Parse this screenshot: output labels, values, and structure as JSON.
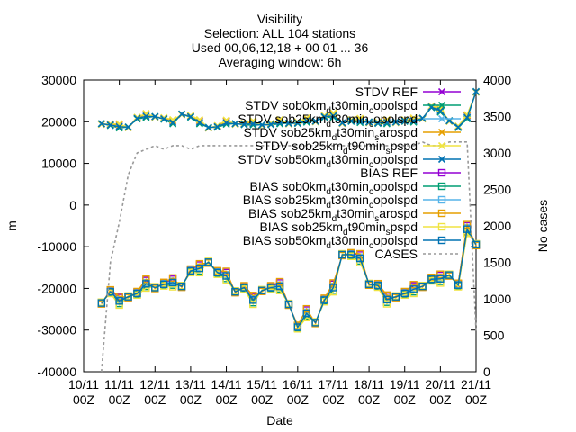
{
  "chart_data": {
    "type": "line",
    "title_lines": [
      "Visibility",
      "Selection: ALL     104 stations",
      "Used 00,06,12,18 + 00 01 ... 36",
      "Averaging window:  6h"
    ],
    "xlabel": "Date",
    "ylabel": "m",
    "y2label": "No cases",
    "xlim": [
      0,
      44
    ],
    "ylim": [
      -40000,
      30000
    ],
    "y2lim": [
      0,
      4000
    ],
    "x_ticks": [
      {
        "x": 0,
        "top": "10/11",
        "bottom": "00Z"
      },
      {
        "x": 4,
        "top": "11/11",
        "bottom": "00Z"
      },
      {
        "x": 8,
        "top": "12/11",
        "bottom": "00Z"
      },
      {
        "x": 12,
        "top": "13/11",
        "bottom": "00Z"
      },
      {
        "x": 16,
        "top": "14/11",
        "bottom": "00Z"
      },
      {
        "x": 20,
        "top": "15/11",
        "bottom": "00Z"
      },
      {
        "x": 24,
        "top": "16/11",
        "bottom": "00Z"
      },
      {
        "x": 28,
        "top": "17/11",
        "bottom": "00Z"
      },
      {
        "x": 32,
        "top": "18/11",
        "bottom": "00Z"
      },
      {
        "x": 36,
        "top": "19/11",
        "bottom": "00Z"
      },
      {
        "x": 40,
        "top": "20/11",
        "bottom": "00Z"
      },
      {
        "x": 44,
        "top": "21/11",
        "bottom": "00Z"
      }
    ],
    "y_ticks": [
      "30000",
      "20000",
      "10000",
      "0",
      "-10000",
      "-20000",
      "-30000",
      "-40000"
    ],
    "y2_ticks": [
      "4000",
      "3500",
      "3000",
      "2500",
      "2000",
      "1500",
      "1000",
      "500",
      "0"
    ],
    "grid": false,
    "legend_position": "top-right",
    "x": [
      2,
      3,
      4,
      5,
      6,
      7,
      8,
      9,
      10,
      11,
      12,
      13,
      14,
      15,
      16,
      17,
      18,
      19,
      20,
      21,
      22,
      23,
      24,
      25,
      26,
      27,
      28,
      29,
      30,
      31,
      32,
      33,
      34,
      35,
      36,
      37,
      38,
      39,
      40,
      41,
      42,
      43,
      44
    ],
    "stdv_base": [
      19500,
      19200,
      18800,
      18700,
      20800,
      21300,
      21200,
      20700,
      19800,
      21800,
      21200,
      19800,
      18600,
      18800,
      19700,
      19500,
      19400,
      19500,
      19200,
      19400,
      19800,
      19600,
      19700,
      20200,
      20100,
      21200,
      21400,
      19700,
      20200,
      20100,
      19900,
      19700,
      19800,
      19900,
      20200,
      20200,
      20800,
      23500,
      22600,
      20200,
      18700,
      21000,
      27200
    ],
    "bias_base": [
      -23500,
      -20800,
      -23000,
      -22000,
      -21200,
      -18900,
      -19800,
      -19000,
      -18600,
      -19500,
      -15800,
      -15200,
      -13700,
      -16200,
      -17000,
      -20800,
      -19800,
      -22800,
      -20500,
      -19800,
      -19500,
      -23800,
      -29300,
      -26000,
      -28200,
      -22800,
      -19800,
      -11900,
      -11900,
      -12800,
      -19000,
      -19300,
      -22700,
      -22000,
      -21200,
      -20200,
      -19500,
      -17800,
      -17700,
      -16800,
      -19200,
      -5800,
      -9500
    ],
    "cases": [
      0,
      1500,
      2050,
      2700,
      3000,
      3050,
      3100,
      3050,
      3100,
      3100,
      3050,
      3100,
      3100,
      3100,
      3100,
      3100,
      3100,
      3100,
      3100,
      3100,
      3100,
      3100,
      3100,
      3100,
      3100,
      3100,
      3100,
      3100,
      3100,
      3100,
      3100,
      3100,
      3100,
      3100,
      3100,
      3100,
      3150,
      3100,
      3100,
      3150,
      3150,
      3150,
      550
    ],
    "series": [
      {
        "name": "STDV REF",
        "group": "stdv",
        "color": "#9400d3",
        "marker": "x",
        "offset": 400
      },
      {
        "name": "STDV sob0km_d t30min_c opolspd",
        "group": "stdv",
        "color": "#009e73",
        "marker": "x",
        "offset": -300
      },
      {
        "name": "STDV sob25km_d t30min_c opolspd",
        "group": "stdv",
        "color": "#56b4e9",
        "marker": "x",
        "offset": 150
      },
      {
        "name": "STDV sob25km_d t30min_s arospd",
        "group": "stdv",
        "color": "#e69f00",
        "marker": "x",
        "offset": 500
      },
      {
        "name": "STDV sob25km_d t90min_s pspd",
        "group": "stdv",
        "color": "#f0e442",
        "marker": "x",
        "offset": 700
      },
      {
        "name": "STDV sob50km_d t30min_c opolspd",
        "group": "stdv",
        "color": "#0072b2",
        "marker": "x",
        "offset": 0
      },
      {
        "name": "BIAS REF",
        "group": "bias",
        "color": "#9400d3",
        "marker": "square",
        "offset": 800
      },
      {
        "name": "BIAS sob0km_d t30min_c opolspd",
        "group": "bias",
        "color": "#009e73",
        "marker": "square",
        "offset": -600
      },
      {
        "name": "BIAS sob25km_d t30min_c opolspd",
        "group": "bias",
        "color": "#56b4e9",
        "marker": "square",
        "offset": 300
      },
      {
        "name": "BIAS sob25km_d t30min_s arospd",
        "group": "bias",
        "color": "#e69f00",
        "marker": "square",
        "offset": 1100
      },
      {
        "name": "BIAS sob25km_d t90min_s pspd",
        "group": "bias",
        "color": "#f0e442",
        "marker": "square",
        "offset": -1000
      },
      {
        "name": "BIAS sob50km_d t30min_c opolspd",
        "group": "bias",
        "color": "#0072b2",
        "marker": "square",
        "offset": 0
      },
      {
        "name": "CASES",
        "group": "cases",
        "color": "#999999",
        "marker": "none",
        "offset": 0
      }
    ],
    "legend_labels": [
      {
        "parts": [
          "STDV REF"
        ]
      },
      {
        "parts": [
          "STDV sob0km",
          "d",
          "t30min",
          "c",
          "opolspd"
        ]
      },
      {
        "parts": [
          "STDV sob25km",
          "d",
          "t30min",
          "c",
          "opolspd"
        ]
      },
      {
        "parts": [
          "STDV sob25km",
          "d",
          "t30min",
          "s",
          "arospd"
        ]
      },
      {
        "parts": [
          "STDV sob25km",
          "d",
          "t90min",
          "s",
          "pspd"
        ]
      },
      {
        "parts": [
          "STDV sob50km",
          "d",
          "t30min",
          "c",
          "opolspd"
        ]
      },
      {
        "parts": [
          "BIAS REF"
        ]
      },
      {
        "parts": [
          "BIAS sob0km",
          "d",
          "t30min",
          "c",
          "opolspd"
        ]
      },
      {
        "parts": [
          "BIAS sob25km",
          "d",
          "t30min",
          "c",
          "opolspd"
        ]
      },
      {
        "parts": [
          "BIAS sob25km",
          "d",
          "t30min",
          "s",
          "arospd"
        ]
      },
      {
        "parts": [
          "BIAS sob25km",
          "d",
          "t90min",
          "s",
          "pspd"
        ]
      },
      {
        "parts": [
          "BIAS sob50km",
          "d",
          "t30min",
          "c",
          "opolspd"
        ]
      },
      {
        "parts": [
          "CASES"
        ]
      }
    ]
  }
}
